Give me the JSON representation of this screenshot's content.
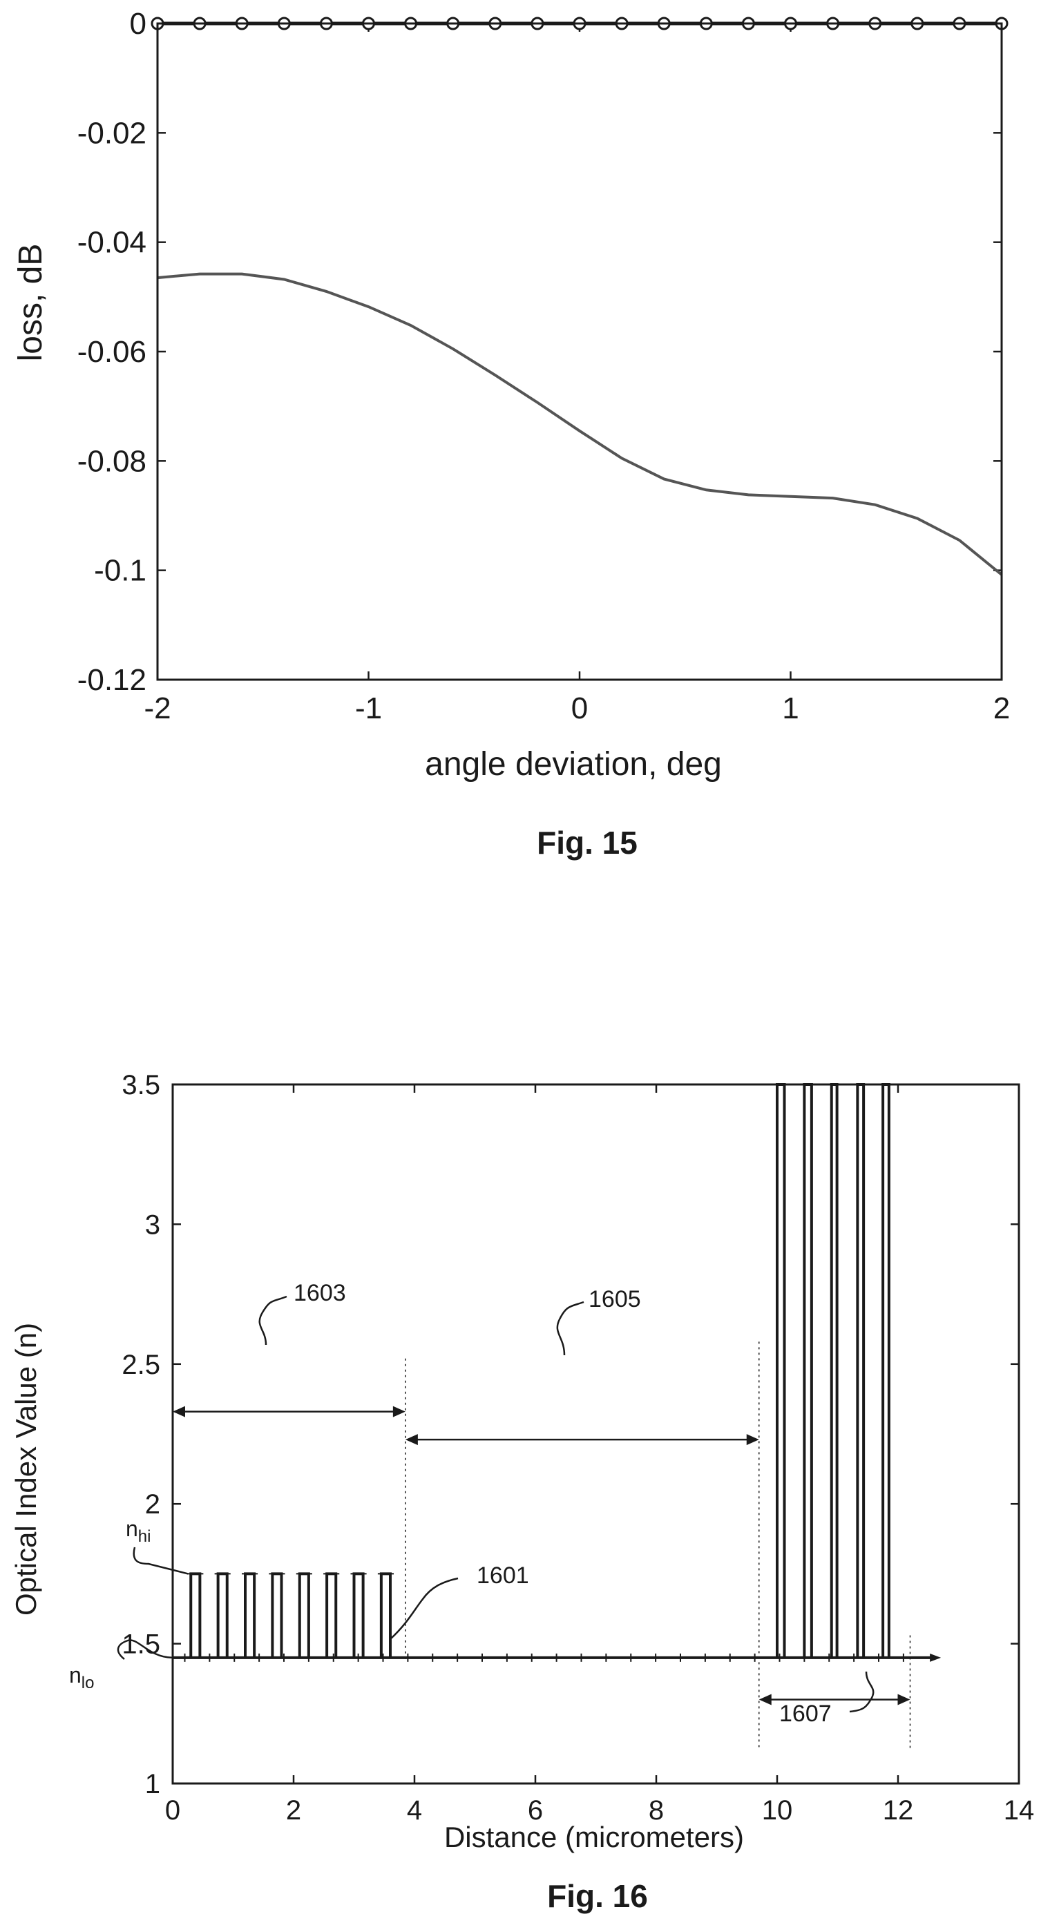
{
  "figures": [
    {
      "caption": "Fig. 15",
      "chart_data": {
        "type": "line",
        "xlabel": "angle deviation, deg",
        "ylabel": "loss, dB",
        "xlim": [
          -2,
          2
        ],
        "ylim": [
          -0.12,
          0
        ],
        "xticks": [
          -2,
          -1,
          0,
          1,
          2
        ],
        "xtick_labels": [
          "-2",
          "-1",
          "0",
          "1",
          "2"
        ],
        "yticks": [
          0,
          -0.02,
          -0.04,
          -0.06,
          -0.08,
          -0.1,
          -0.12
        ],
        "ytick_labels": [
          "0",
          "-0.02",
          "-0.04",
          "-0.06",
          "-0.08",
          "-0.1",
          "-0.12"
        ],
        "series": [
          {
            "style": "line-with-circle-markers",
            "x": [
              -2,
              -1.8,
              -1.6,
              -1.4,
              -1.2,
              -1,
              -0.8,
              -0.6,
              -0.4,
              -0.2,
              0,
              0.2,
              0.4,
              0.6,
              0.8,
              1,
              1.2,
              1.4,
              1.6,
              1.8,
              2
            ],
            "y": [
              0,
              0,
              0,
              0,
              0,
              0,
              0,
              0,
              0,
              0,
              0,
              0,
              0,
              0,
              0,
              0,
              0,
              0,
              0,
              0,
              0
            ]
          },
          {
            "style": "line",
            "x": [
              -2,
              -1.8,
              -1.6,
              -1.4,
              -1.2,
              -1,
              -0.8,
              -0.6,
              -0.4,
              -0.2,
              0,
              0.2,
              0.4,
              0.6,
              0.8,
              1,
              1.2,
              1.4,
              1.6,
              1.8,
              2
            ],
            "y": [
              -0.0465,
              -0.0458,
              -0.0458,
              -0.0468,
              -0.049,
              -0.0518,
              -0.0552,
              -0.0595,
              -0.0643,
              -0.0693,
              -0.0745,
              -0.0795,
              -0.0833,
              -0.0853,
              -0.0862,
              -0.0865,
              -0.0868,
              -0.088,
              -0.0905,
              -0.0945,
              -0.1008
            ]
          }
        ]
      }
    },
    {
      "caption": "Fig. 16",
      "chart_data": {
        "type": "line",
        "xlabel": "Distance (micrometers)",
        "ylabel": "Optical Index Value (n)",
        "xlim": [
          0,
          14
        ],
        "ylim": [
          1,
          3.5
        ],
        "xticks": [
          0,
          2,
          4,
          6,
          8,
          10,
          12,
          14
        ],
        "xtick_labels": [
          "0",
          "2",
          "4",
          "6",
          "8",
          "10",
          "12",
          "14"
        ],
        "yticks": [
          1,
          1.5,
          2,
          2.5,
          3,
          3.5
        ],
        "ytick_labels": [
          "1",
          "1.5",
          "2",
          "2.5",
          "3",
          "3.5"
        ],
        "baseline": {
          "y": 1.45,
          "x_start": 0,
          "x_end": 12.55
        },
        "low_contrast_layers": {
          "n_low": 1.45,
          "n_high": 1.75,
          "pairs": [
            [
              0.3,
              0.45
            ],
            [
              0.75,
              0.9
            ],
            [
              1.2,
              1.35
            ],
            [
              1.65,
              1.8
            ],
            [
              2.1,
              2.25
            ],
            [
              2.55,
              2.7
            ],
            [
              3.0,
              3.15
            ],
            [
              3.45,
              3.6
            ]
          ]
        },
        "high_contrast_layers": {
          "n_low": 1.45,
          "n_high": 3.5,
          "pairs": [
            [
              10.0,
              10.12
            ],
            [
              10.45,
              10.57
            ],
            [
              10.9,
              10.99
            ],
            [
              11.33,
              11.43
            ],
            [
              11.75,
              11.85
            ]
          ]
        },
        "annotations": {
          "n_hi": {
            "base": "n",
            "sub": "hi",
            "value": 1.75
          },
          "n_lo": {
            "base": "n",
            "sub": "lo",
            "value": 1.45
          },
          "labels": [
            {
              "text": "1603",
              "x_range": [
                0,
                3.85
              ],
              "y": 2.33
            },
            {
              "text": "1605",
              "x_range": [
                3.85,
                9.7
              ],
              "y": 2.23
            },
            {
              "text": "1601"
            },
            {
              "text": "1607",
              "x_range": [
                9.7,
                12.2
              ],
              "y": 1.3
            }
          ],
          "dotted_dividers": [
            3.85,
            9.7,
            12.2
          ]
        }
      }
    }
  ]
}
